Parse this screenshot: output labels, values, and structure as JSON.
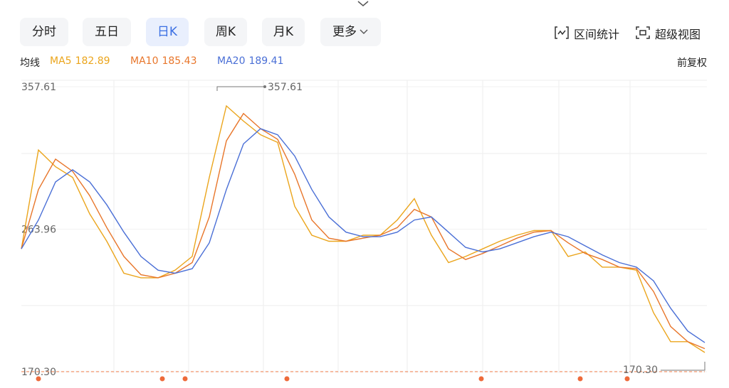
{
  "ui": {
    "tabs": [
      "分时",
      "五日",
      "日K",
      "周K",
      "月K",
      "更多"
    ],
    "tools": [
      "区间统计",
      "超级视图"
    ],
    "ma_label": "均线",
    "adjust": "前复权"
  },
  "chart_data": {
    "type": "line",
    "series": [
      {
        "name": "MA5",
        "color": "#eba51c",
        "values": [
          251,
          316,
          305,
          298,
          274,
          256,
          235,
          232,
          232,
          237,
          246,
          298,
          345,
          335,
          326,
          321,
          279,
          260,
          256,
          256,
          260,
          260,
          270,
          284,
          260,
          242,
          246,
          251,
          256,
          260,
          263,
          263,
          246,
          249,
          239,
          239,
          237,
          209,
          190,
          190,
          182.89
        ]
      },
      {
        "name": "MA10",
        "color": "#e8762b",
        "values": [
          251,
          290,
          310,
          302,
          286,
          265,
          246,
          234,
          232,
          235,
          242,
          272,
          322,
          340,
          330,
          323,
          300,
          270,
          258,
          256,
          258,
          260,
          265,
          277,
          272,
          251,
          244,
          248,
          253,
          258,
          262,
          263,
          255,
          248,
          244,
          239,
          238,
          223,
          200,
          190,
          185.43
        ]
      },
      {
        "name": "MA20",
        "color": "#4a6fd6",
        "values": [
          251,
          270,
          295,
          303,
          295,
          280,
          262,
          246,
          237,
          235,
          238,
          255,
          290,
          320,
          330,
          326,
          312,
          290,
          272,
          262,
          259,
          259,
          262,
          270,
          272,
          262,
          252,
          249,
          251,
          255,
          259,
          262,
          259,
          253,
          247,
          242,
          239,
          230,
          212,
          197,
          189.41
        ]
      }
    ],
    "ylim": [
      170.3,
      357.61
    ],
    "yticks": [
      357.61,
      263.96,
      {
        "value": 170.3,
        "label": "170.30"
      }
    ],
    "annotations": [
      {
        "value": 357.61,
        "label": "357.61"
      },
      {
        "value": 170.3,
        "label": "170.30"
      }
    ],
    "grid": true
  }
}
